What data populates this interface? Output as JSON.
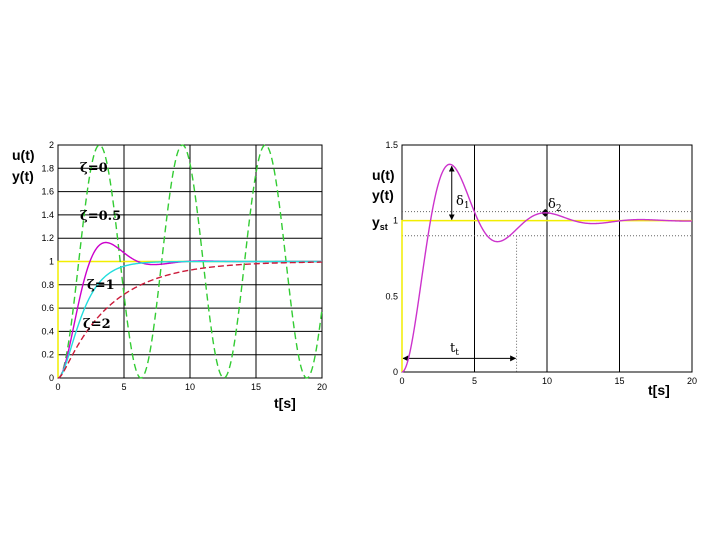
{
  "chart_data": [
    {
      "type": "line",
      "ylabel_lines": [
        "u(t)",
        "y(t)"
      ],
      "xlabel": "t[s]",
      "xlim": [
        0,
        20
      ],
      "ylim": [
        0,
        2
      ],
      "x_ticks": [
        "0",
        "5",
        "10",
        "15",
        "20"
      ],
      "y_ticks": [
        "0",
        "0.2",
        "0.4",
        "0.6",
        "0.8",
        "1",
        "1.2",
        "1.4",
        "1.6",
        "1.8",
        "2"
      ],
      "grid": true,
      "step_input": {
        "value": 1,
        "color": "#f2ee00"
      },
      "series": [
        {
          "label": "ζ=0",
          "zeta": 0,
          "omega_n": 1,
          "color": "#33cc33",
          "dash": "7,4"
        },
        {
          "label": "ζ=0.5",
          "zeta": 0.5,
          "omega_n": 1,
          "color": "#cc00cc",
          "dash": ""
        },
        {
          "label": "ζ=1",
          "zeta": 1,
          "omega_n": 1,
          "color": "#22dddd",
          "dash": ""
        },
        {
          "label": "ζ=2",
          "zeta": 2,
          "omega_n": 1,
          "color": "#cc1a3a",
          "dash": "6,3"
        }
      ]
    },
    {
      "type": "line",
      "ylabel_lines": [
        "u(t)",
        "y(t)"
      ],
      "xlabel": "t[s]",
      "xlim": [
        0,
        20
      ],
      "ylim": [
        0,
        1.5
      ],
      "x_ticks": [
        "0",
        "5",
        "10",
        "15",
        "20"
      ],
      "y_ticks": [
        "0",
        "0.5",
        "1",
        "1.5"
      ],
      "grid": true,
      "steady_state_label": "y",
      "steady_state_sub": "st",
      "step_input": {
        "value": 1,
        "color": "#f2ee00"
      },
      "series": [
        {
          "label": "",
          "zeta": 0.3,
          "omega_n": 1,
          "color": "#cc33cc",
          "dash": ""
        }
      ],
      "annotations": {
        "delta1": {
          "text": "δ",
          "sub": "1"
        },
        "delta2": {
          "text": "δ",
          "sub": "2"
        },
        "settling": {
          "text": "t",
          "sub": "t",
          "t": 7.9
        },
        "band_upper": 1.06,
        "band_lower": 0.9
      }
    }
  ]
}
